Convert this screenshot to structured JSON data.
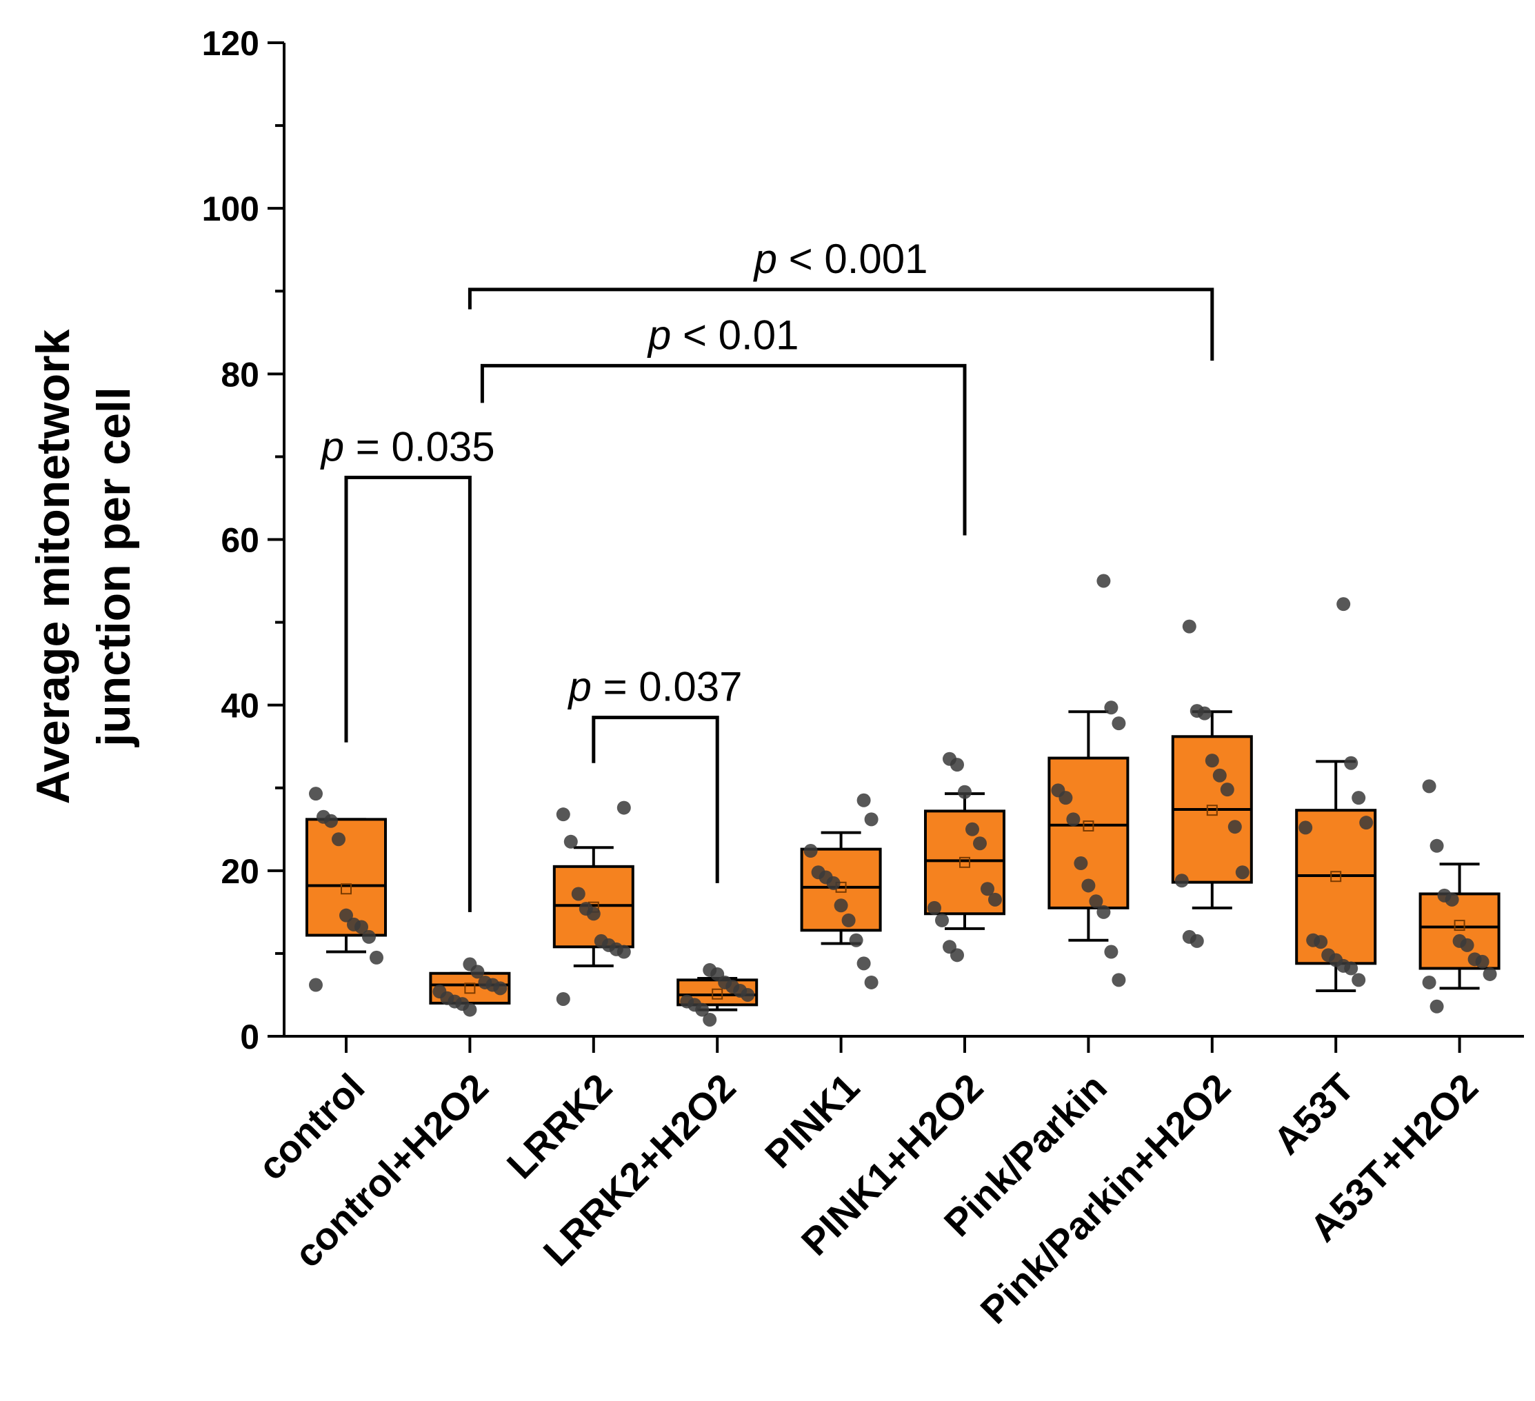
{
  "chart_data": {
    "type": "box",
    "title": "",
    "xlabel": "",
    "ylabel_lines": [
      "Average mitonetwork",
      "junction per cell"
    ],
    "ylim": [
      0,
      120
    ],
    "yticks": [
      0,
      20,
      40,
      60,
      80,
      100,
      120
    ],
    "box_color": "#f5821f",
    "point_color": "#3a3a3a",
    "categories": [
      "control",
      "control+H2O2",
      "LRRK2",
      "LRRK2+H2O2",
      "PINK1",
      "PINK1+H2O2",
      "Pink/Parkin",
      "Pink/Parkin+H2O2",
      "A53T",
      "A53T+H2O2"
    ],
    "boxes": [
      {
        "q1": 12.2,
        "median": 18.2,
        "q3": 26.2,
        "whisker_low": 10.2,
        "whisker_high": 26.2,
        "mean": 17.8,
        "points": [
          29.3,
          26.5,
          26.0,
          23.8,
          14.6,
          13.5,
          13.2,
          12.0,
          9.5,
          6.2
        ]
      },
      {
        "q1": 4.0,
        "median": 6.2,
        "q3": 7.6,
        "whisker_low": 4.0,
        "whisker_high": 7.6,
        "mean": 5.8,
        "points": [
          8.7,
          7.8,
          6.5,
          6.2,
          5.8,
          5.4,
          4.6,
          4.2,
          3.9,
          3.2
        ]
      },
      {
        "q1": 10.8,
        "median": 15.8,
        "q3": 20.5,
        "whisker_low": 8.5,
        "whisker_high": 22.8,
        "mean": 15.6,
        "points": [
          27.6,
          26.8,
          23.5,
          17.2,
          15.4,
          14.8,
          11.5,
          11.0,
          10.5,
          10.2,
          4.5
        ]
      },
      {
        "q1": 3.8,
        "median": 5.0,
        "q3": 6.8,
        "whisker_low": 3.2,
        "whisker_high": 7.0,
        "mean": 5.1,
        "points": [
          8.0,
          7.5,
          6.5,
          6.0,
          5.5,
          5.0,
          4.2,
          3.8,
          3.2,
          2.0
        ]
      },
      {
        "q1": 12.8,
        "median": 18.0,
        "q3": 22.6,
        "whisker_low": 11.2,
        "whisker_high": 24.6,
        "mean": 18.0,
        "points": [
          28.5,
          26.2,
          22.4,
          19.8,
          19.2,
          18.5,
          15.8,
          14.0,
          11.6,
          8.8,
          6.5
        ]
      },
      {
        "q1": 14.8,
        "median": 21.2,
        "q3": 27.2,
        "whisker_low": 13.0,
        "whisker_high": 29.3,
        "mean": 21.0,
        "points": [
          33.5,
          32.8,
          29.5,
          25.0,
          23.3,
          17.8,
          16.5,
          15.5,
          14.0,
          10.8,
          9.8
        ]
      },
      {
        "q1": 15.5,
        "median": 25.5,
        "q3": 33.6,
        "whisker_low": 11.6,
        "whisker_high": 39.2,
        "mean": 25.4,
        "points": [
          55.0,
          39.7,
          37.8,
          29.7,
          28.8,
          26.2,
          20.9,
          18.2,
          16.3,
          15.0,
          10.2,
          6.8
        ]
      },
      {
        "q1": 18.6,
        "median": 27.4,
        "q3": 36.2,
        "whisker_low": 15.5,
        "whisker_high": 39.2,
        "mean": 27.3,
        "points": [
          49.5,
          39.3,
          39.0,
          33.3,
          31.5,
          29.8,
          25.3,
          19.8,
          18.8,
          12.0,
          11.5
        ]
      },
      {
        "q1": 8.8,
        "median": 19.4,
        "q3": 27.3,
        "whisker_low": 5.5,
        "whisker_high": 33.2,
        "mean": 19.3,
        "points": [
          52.2,
          33.0,
          28.8,
          25.8,
          25.2,
          11.6,
          11.4,
          9.8,
          9.2,
          8.5,
          8.2,
          6.8
        ]
      },
      {
        "q1": 8.2,
        "median": 13.2,
        "q3": 17.2,
        "whisker_low": 5.8,
        "whisker_high": 20.8,
        "mean": 13.4,
        "points": [
          30.2,
          23.0,
          17.0,
          16.5,
          11.5,
          11.0,
          9.3,
          9.0,
          7.5,
          6.5,
          3.6
        ]
      }
    ],
    "annotations": [
      {
        "from": 0,
        "to": 1,
        "y": 67.5,
        "left_drop": 35.5,
        "right_drop": 15.0,
        "label_italic": "p",
        "label_rest": " = 0.035"
      },
      {
        "from": 2,
        "to": 3,
        "y": 38.5,
        "left_drop": 33.0,
        "right_drop": 18.5,
        "label_italic": "p",
        "label_rest": " = 0.037"
      },
      {
        "from": 1,
        "to": 5,
        "y": 81.0,
        "left_drop": 76.5,
        "right_drop": 60.5,
        "label_italic": "p",
        "label_rest": " < 0.01"
      },
      {
        "from": 1,
        "to": 7,
        "y": 90.2,
        "left_drop": 87.8,
        "right_drop": 81.6,
        "label_italic": "p",
        "label_rest": " < 0.001"
      }
    ]
  }
}
